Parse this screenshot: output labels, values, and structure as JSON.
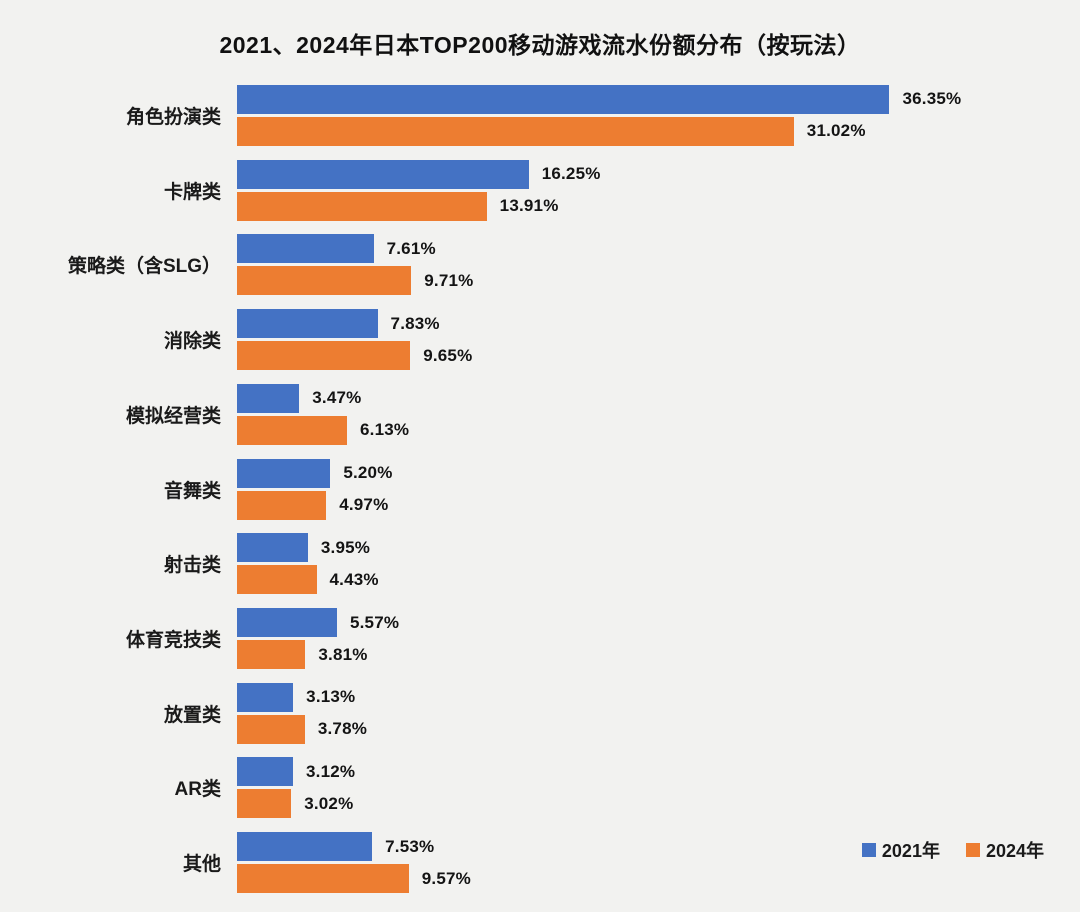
{
  "title": "2021、2024年日本TOP200移动游戏流水份额分布（按玩法）",
  "colors": {
    "background": "#F2F2F0",
    "series_2021": "#4472C4",
    "series_2024": "#ED7D31",
    "text": "#141414"
  },
  "chart_data": {
    "type": "bar",
    "orientation": "horizontal",
    "title": "2021、2024年日本TOP200移动游戏流水份额分布（按玩法）",
    "categories": [
      "角色扮演类",
      "卡牌类",
      "策略类（含SLG）",
      "消除类",
      "模拟经营类",
      "音舞类",
      "射击类",
      "体育竞技类",
      "放置类",
      "AR类",
      "其他"
    ],
    "series": [
      {
        "name": "2021年",
        "color": "#4472C4",
        "values": [
          36.35,
          16.25,
          7.61,
          7.83,
          3.47,
          5.2,
          3.95,
          5.57,
          3.13,
          3.12,
          7.53
        ]
      },
      {
        "name": "2024年",
        "color": "#ED7D31",
        "values": [
          31.02,
          13.91,
          9.71,
          9.65,
          6.13,
          4.97,
          4.43,
          3.81,
          3.78,
          3.02,
          9.57
        ]
      }
    ],
    "value_suffix": "%",
    "value_decimals": 2,
    "xlim": [
      0,
      40
    ],
    "grid": false,
    "legend_position": "bottom-right",
    "legend_labels": [
      "2021年",
      "2024年"
    ]
  }
}
